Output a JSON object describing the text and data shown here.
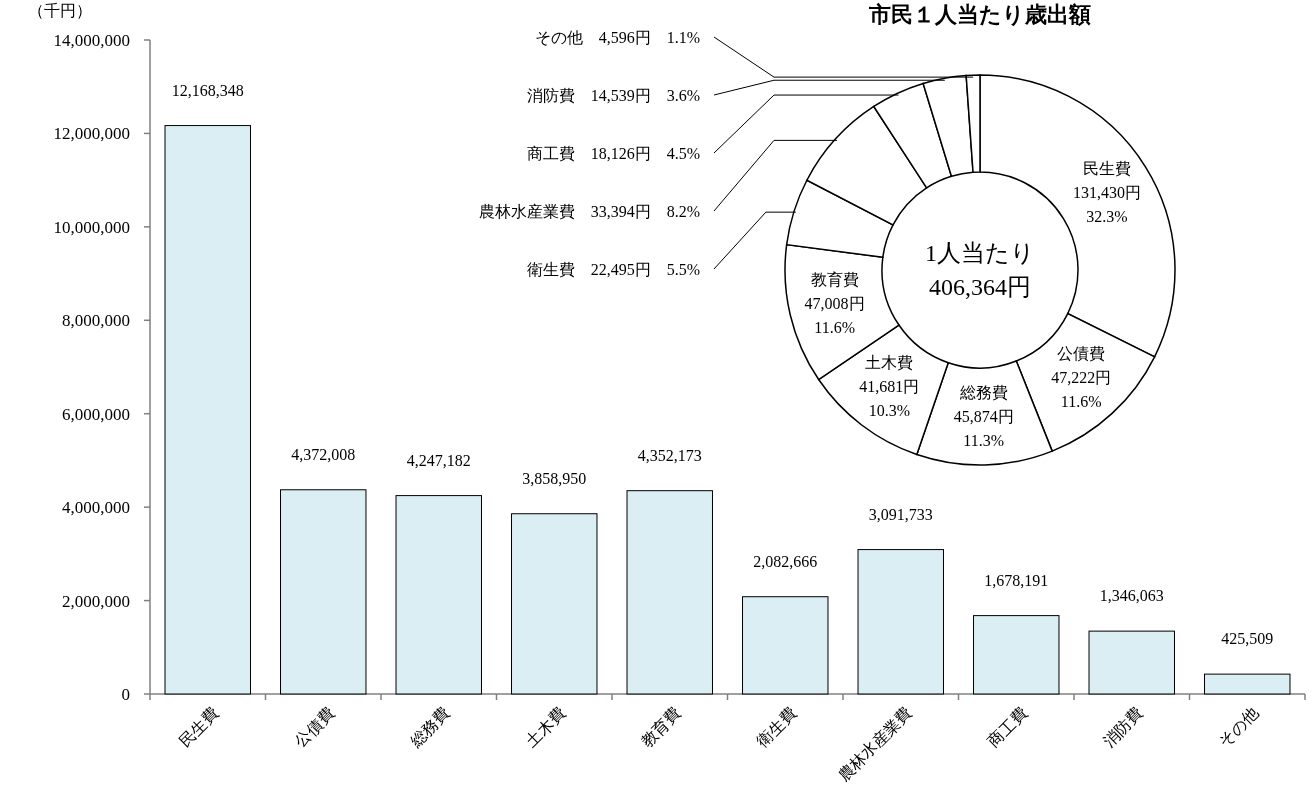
{
  "chart_data": [
    {
      "type": "bar",
      "ylabel": "（千円）",
      "categories": [
        "民生費",
        "公債費",
        "総務費",
        "土木費",
        "教育費",
        "衛生費",
        "農林水産業費",
        "商工費",
        "消防費",
        "その他"
      ],
      "values": [
        12168348,
        4372008,
        4247182,
        3858950,
        4352173,
        2082666,
        3091733,
        1678191,
        1346063,
        425509
      ],
      "color": "#daeef3",
      "ylim": [
        0,
        14000000
      ],
      "yticks": [
        0,
        {
          "value": 2000000,
          "label": "2,000,000"
        },
        {
          "value": 4000000,
          "label": "4,000,000"
        },
        {
          "value": 6000000,
          "label": "6,000,000"
        },
        {
          "value": 8000000,
          "label": "8,000,000"
        },
        {
          "value": 10000000,
          "label": "10,000,000"
        },
        {
          "value": 12000000,
          "label": "12,000,000"
        },
        {
          "value": 14000000,
          "label": "14,000,000"
        }
      ],
      "value_labels": [
        "12,168,348",
        "4,372,008",
        "4,247,182",
        "3,858,950",
        "4,352,173",
        "2,082,666",
        "3,091,733",
        "1,678,191",
        "1,346,063",
        "425,509"
      ]
    },
    {
      "type": "donut",
      "title": "市民１人当たり歳出額",
      "categories": [
        "民生費",
        "公債費",
        "総務費",
        "土木費",
        "教育費",
        "衛生費",
        "農林水産業費",
        "商工費",
        "消防費",
        "その他"
      ],
      "values": [
        131430,
        47222,
        45874,
        41681,
        47008,
        22495,
        33394,
        18126,
        14539,
        4596
      ],
      "colors": [
        "#ffffff",
        "#ffffff",
        "#ffffff",
        "#ffffff",
        "#ffffff",
        "#ffffff",
        "#ffffff",
        "#ffffff",
        "#ffffff",
        "#ffffff"
      ],
      "value_labels": [
        "131,430円 32.3%",
        "47,222円 11.6%",
        "45,874円 11.3%",
        "41,681円 10.3%",
        "47,008円 11.6%",
        "22,495円 5.5%",
        "33,394円 8.2%",
        "18,126円 4.5%",
        "14,539円 3.6%",
        "4,596円 1.1%"
      ],
      "annotations": [
        "1人当たり",
        "406,364円"
      ]
    }
  ]
}
